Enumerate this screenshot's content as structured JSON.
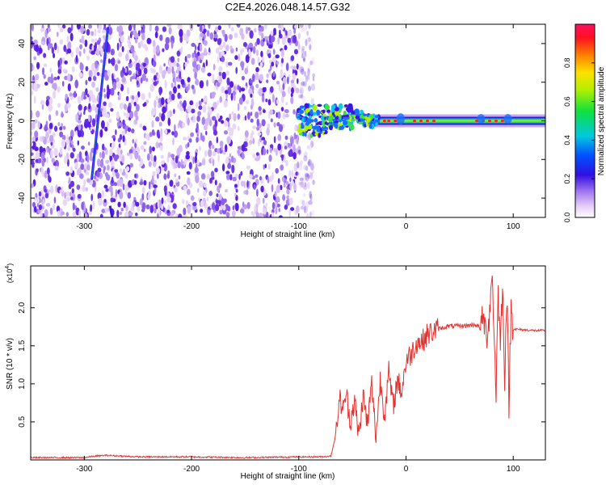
{
  "chart_data": [
    {
      "type": "heatmap",
      "title": "C2E4.2026.048.14.57.G32",
      "xlabel": "Height of straight line (km)",
      "ylabel": "Frequency (Hz)",
      "xlim": [
        -350,
        130
      ],
      "ylim": [
        -50,
        50
      ],
      "xticks": [
        "-300",
        "-200",
        "-100",
        "0",
        "100"
      ],
      "yticks": [
        "40",
        "20",
        "0",
        "-20",
        "-40"
      ],
      "colorbar": {
        "label": "Normalized spectral amplitude",
        "range": [
          0,
          1
        ],
        "ticks": [
          "0.0",
          "0.2",
          "0.4",
          "0.6",
          "0.8"
        ]
      },
      "features": {
        "noise_region_x": [
          -350,
          -92
        ],
        "band_x": [
          -100,
          130
        ],
        "band_center_hz": 0,
        "streak": {
          "x_start": -293,
          "y_start": -30,
          "x_end": -278,
          "y_end": 48
        }
      }
    },
    {
      "type": "line",
      "xlabel": "Height of straight line (km)",
      "ylabel": "SNR (10 * v/v)",
      "y_multiplier": "(x10",
      "y_exponent": "4",
      "xlim": [
        -350,
        130
      ],
      "ylim": [
        0,
        2.55
      ],
      "xticks": [
        "-300",
        "-200",
        "-100",
        "0",
        "100"
      ],
      "yticks": [
        "0.5",
        "1.0",
        "1.5",
        "2.0"
      ],
      "series": [
        {
          "name": "SNR",
          "color": "#e8312f",
          "x": [
            -350,
            -300,
            -290,
            -280,
            -250,
            -200,
            -150,
            -100,
            -80,
            -70,
            -66,
            -62,
            -58,
            -56,
            -52,
            -48,
            -44,
            -40,
            -36,
            -32,
            -28,
            -24,
            -20,
            -16,
            -12,
            -8,
            -4,
            0,
            5,
            10,
            15,
            20,
            30,
            40,
            50,
            60,
            65,
            70,
            72,
            75,
            78,
            80,
            82,
            84,
            86,
            88,
            90,
            92,
            94,
            96,
            98,
            100,
            110,
            120,
            130
          ],
          "values": [
            0.03,
            0.03,
            0.05,
            0.06,
            0.04,
            0.04,
            0.03,
            0.04,
            0.04,
            0.05,
            0.3,
            0.8,
            0.65,
            0.9,
            0.5,
            0.78,
            0.3,
            0.85,
            0.45,
            1.0,
            0.3,
            1.05,
            0.6,
            1.15,
            0.7,
            1.05,
            0.9,
            1.3,
            1.4,
            1.55,
            1.55,
            1.65,
            1.72,
            1.76,
            1.76,
            1.77,
            1.78,
            1.72,
            1.9,
            1.6,
            1.95,
            2.5,
            1.75,
            0.9,
            2.2,
            1.5,
            2.3,
            1.1,
            2.2,
            0.75,
            2.0,
            1.72,
            1.71,
            1.7,
            1.7
          ]
        }
      ]
    }
  ]
}
